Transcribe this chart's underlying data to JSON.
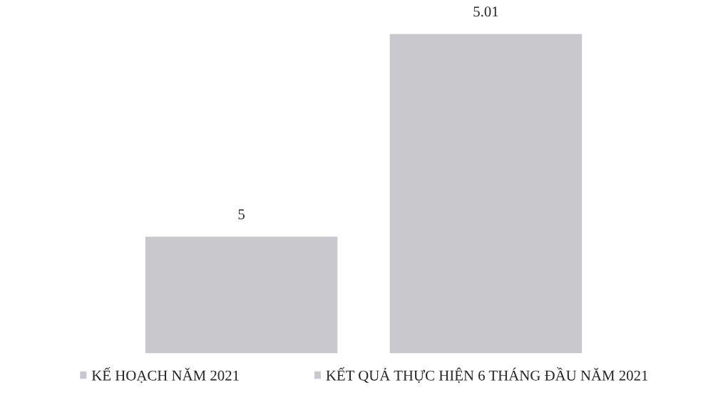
{
  "chart_data": {
    "type": "bar",
    "categories": [
      null
    ],
    "series": [
      {
        "name": "KẾ HOẠCH NĂM 2021",
        "color": "#c9c9cd",
        "values": [
          5
        ]
      },
      {
        "name": "KẾT QUẢ THỰC HIỆN 6 THÁNG ĐẦU NĂM 2021",
        "color": "#c9c9cd",
        "values": [
          5.01
        ]
      }
    ],
    "ylim": [
      4.9942,
      5.01
    ],
    "tick_labels": false,
    "data_labels": true,
    "grid": false,
    "legend": "bottom"
  }
}
